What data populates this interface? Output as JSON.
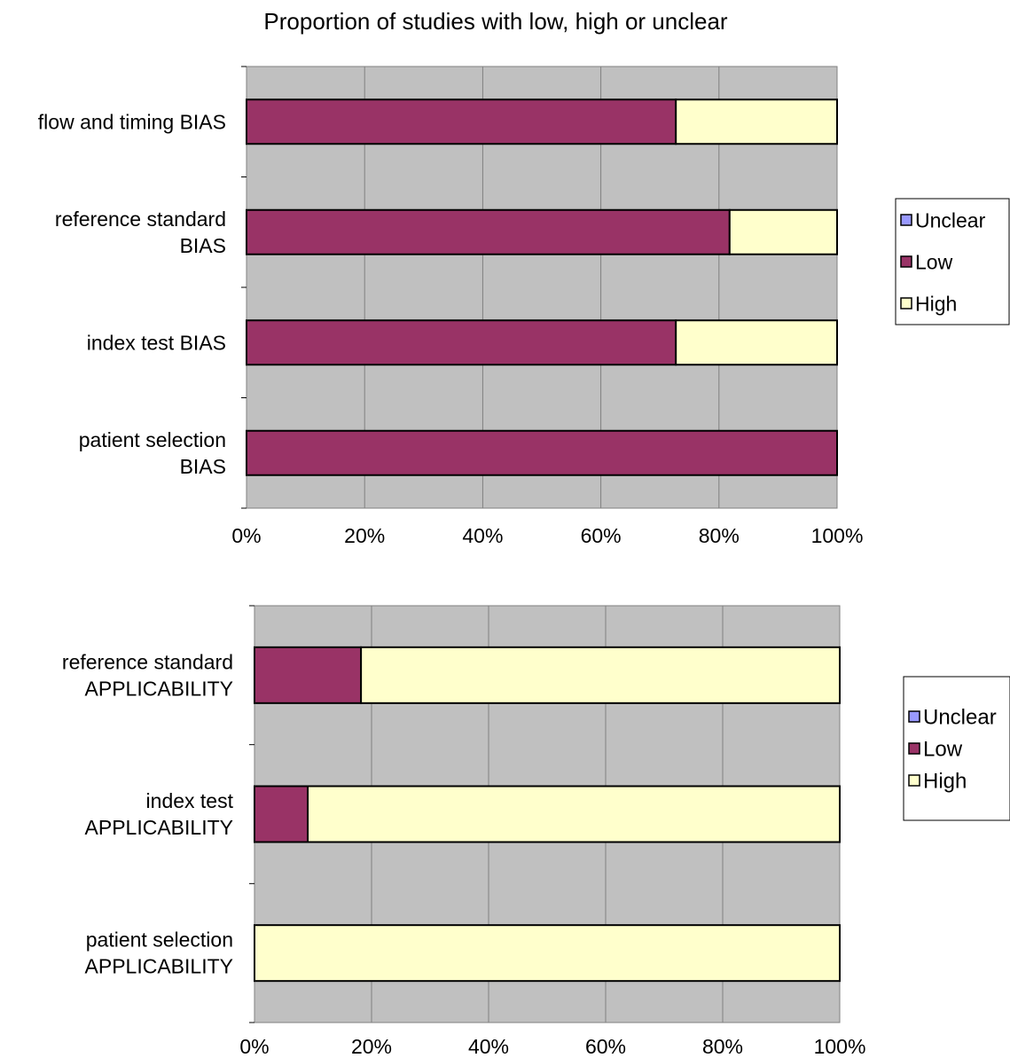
{
  "title": "Proportion of studies with low, high or unclear",
  "colors": {
    "Unclear": "#9999FF",
    "Low": "#993366",
    "High": "#FFFFCC",
    "plot_background": "#C0C0C0",
    "gridline": "#808080"
  },
  "chart_data": [
    {
      "type": "bar",
      "orientation": "horizontal",
      "stacked": true,
      "title": "Proportion of studies with low, high or unclear",
      "categories": [
        "flow and timing BIAS",
        "reference standard BIAS",
        "index test BIAS",
        "patient selection BIAS"
      ],
      "category_lines": [
        [
          "flow and timing BIAS"
        ],
        [
          "reference standard",
          "BIAS"
        ],
        [
          "index test BIAS"
        ],
        [
          "patient selection",
          "BIAS"
        ]
      ],
      "series": [
        {
          "name": "Low",
          "values": [
            72.7,
            81.8,
            72.7,
            100
          ]
        },
        {
          "name": "High",
          "values": [
            27.3,
            18.2,
            27.3,
            0
          ]
        },
        {
          "name": "Unclear",
          "values": [
            0,
            0,
            0,
            0
          ]
        }
      ],
      "legend": [
        "Unclear",
        "Low",
        "High"
      ],
      "legend_position": "right",
      "xlim": [
        0,
        100
      ],
      "xticks": [
        "0%",
        "20%",
        "40%",
        "60%",
        "80%",
        "100%"
      ],
      "grid": true
    },
    {
      "type": "bar",
      "orientation": "horizontal",
      "stacked": true,
      "categories": [
        "reference standard APPLICABILITY",
        "index test APPLICABILITY",
        "patient selection APPLICABILITY"
      ],
      "category_lines": [
        [
          "reference standard",
          "APPLICABILITY"
        ],
        [
          "index test",
          "APPLICABILITY"
        ],
        [
          "patient selection",
          "APPLICABILITY"
        ]
      ],
      "series": [
        {
          "name": "Low",
          "values": [
            18.2,
            9.1,
            0
          ]
        },
        {
          "name": "High",
          "values": [
            81.8,
            90.9,
            100
          ]
        },
        {
          "name": "Unclear",
          "values": [
            0,
            0,
            0
          ]
        }
      ],
      "legend": [
        "Unclear",
        "Low",
        "High"
      ],
      "legend_position": "right",
      "xlim": [
        0,
        100
      ],
      "xticks": [
        "0%",
        "20%",
        "40%",
        "60%",
        "80%",
        "100%"
      ],
      "grid": true
    }
  ]
}
